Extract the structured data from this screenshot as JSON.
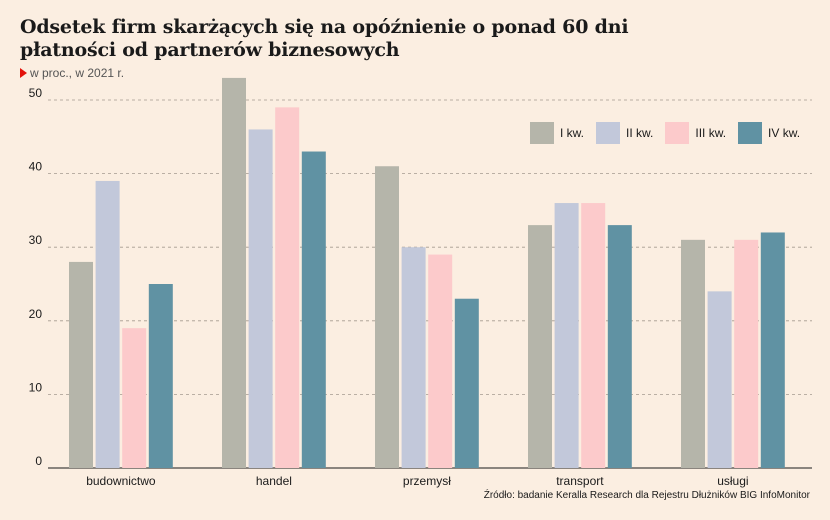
{
  "header": {
    "title": "Odsetek firm skarżących się na opóźnienie o ponad 60 dni płatności od partnerów biznesowych",
    "subtitle": "w proc., w 2021 r."
  },
  "colors": {
    "background": "#fbeee1",
    "accent_marker": "#e3120b",
    "series": [
      "#b5b5aa",
      "#c2c8da",
      "#fccacb",
      "#6092a3"
    ]
  },
  "chart_data": {
    "type": "bar",
    "title": "Odsetek firm skarżących się na opóźnienie o ponad 60 dni płatności od partnerów biznesowych",
    "subtitle": "w proc., w 2021 r.",
    "categories": [
      "budownictwo",
      "handel",
      "przemysł",
      "transport",
      "usługi"
    ],
    "series": [
      {
        "name": "I kw.",
        "values": [
          28,
          53,
          41,
          33,
          31
        ]
      },
      {
        "name": "II kw.",
        "values": [
          39,
          46,
          30,
          36,
          24
        ]
      },
      {
        "name": "III kw.",
        "values": [
          19,
          49,
          29,
          36,
          31
        ]
      },
      {
        "name": "IV kw.",
        "values": [
          25,
          43,
          23,
          33,
          32
        ]
      }
    ],
    "ylim": [
      0,
      50
    ],
    "yticks": [
      0,
      10,
      20,
      30,
      40,
      50
    ],
    "grid": true,
    "legend": "top-right"
  },
  "source": "Źródło: badanie Keralla Research dla Rejestru Dłużników BIG InfoMonitor"
}
